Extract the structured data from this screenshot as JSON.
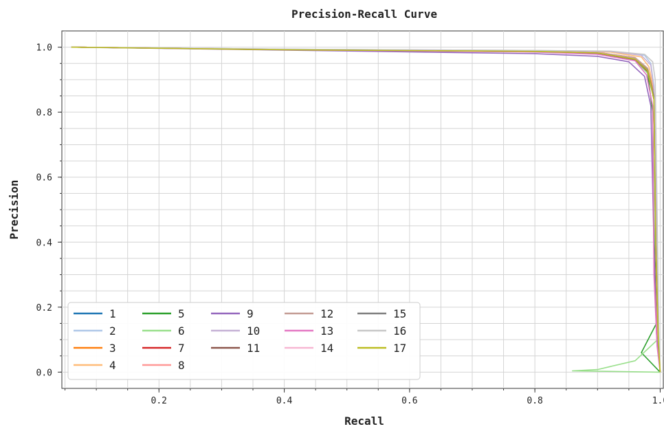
{
  "chart_data": {
    "type": "line",
    "title": "Precision-Recall Curve",
    "xlabel": "Recall",
    "ylabel": "Precision",
    "xlim": [
      0.045,
      1.005
    ],
    "ylim": [
      -0.05,
      1.05
    ],
    "xticks": [
      "0.2",
      "0.4",
      "0.6",
      "0.8",
      "1.0"
    ],
    "xtick_values": [
      0.2,
      0.4,
      0.6,
      0.8,
      1.0
    ],
    "yticks": [
      "0.0",
      "0.2",
      "0.4",
      "0.6",
      "0.8",
      "1.0"
    ],
    "ytick_values": [
      0.0,
      0.2,
      0.4,
      0.6,
      0.8,
      1.0
    ],
    "grid": true,
    "legend": {
      "placement": "lower-left",
      "columns": 5
    },
    "series": [
      {
        "name": "1",
        "color": "#1f77b4",
        "points": [
          [
            0.06,
            1.0
          ],
          [
            0.4,
            0.993
          ],
          [
            0.8,
            0.987
          ],
          [
            0.9,
            0.983
          ],
          [
            0.96,
            0.965
          ],
          [
            0.98,
            0.93
          ],
          [
            0.99,
            0.85
          ],
          [
            0.993,
            0.4
          ],
          [
            0.997,
            0.1
          ],
          [
            1.0,
            0.0
          ]
        ]
      },
      {
        "name": "2",
        "color": "#aec7e8",
        "points": [
          [
            0.06,
            1.0
          ],
          [
            0.4,
            0.994
          ],
          [
            0.8,
            0.989
          ],
          [
            0.92,
            0.987
          ],
          [
            0.975,
            0.975
          ],
          [
            0.985,
            0.95
          ],
          [
            0.99,
            0.88
          ],
          [
            0.994,
            0.5
          ],
          [
            0.997,
            0.12
          ],
          [
            1.0,
            0.0
          ]
        ]
      },
      {
        "name": "3",
        "color": "#ff7f0e",
        "points": [
          [
            0.06,
            1.0
          ],
          [
            0.4,
            0.993
          ],
          [
            0.8,
            0.988
          ],
          [
            0.9,
            0.984
          ],
          [
            0.96,
            0.968
          ],
          [
            0.98,
            0.935
          ],
          [
            0.99,
            0.86
          ],
          [
            0.993,
            0.45
          ],
          [
            0.997,
            0.1
          ],
          [
            1.0,
            0.0
          ]
        ]
      },
      {
        "name": "4",
        "color": "#ffbb78",
        "points": [
          [
            0.06,
            1.0
          ],
          [
            0.4,
            0.993
          ],
          [
            0.8,
            0.988
          ],
          [
            0.92,
            0.985
          ],
          [
            0.97,
            0.97
          ],
          [
            0.982,
            0.94
          ],
          [
            0.99,
            0.87
          ],
          [
            0.993,
            0.45
          ],
          [
            0.998,
            0.1
          ],
          [
            1.0,
            0.0
          ]
        ]
      },
      {
        "name": "5",
        "color": "#2ca02c",
        "points": [
          [
            0.06,
            1.0
          ],
          [
            0.4,
            0.992
          ],
          [
            0.8,
            0.986
          ],
          [
            0.9,
            0.98
          ],
          [
            0.96,
            0.96
          ],
          [
            0.98,
            0.92
          ],
          [
            0.988,
            0.8
          ],
          [
            0.99,
            0.45
          ],
          [
            0.994,
            0.15
          ],
          [
            0.97,
            0.06
          ],
          [
            1.0,
            0.0
          ]
        ]
      },
      {
        "name": "6",
        "color": "#98df8a",
        "points": [
          [
            0.06,
            1.0
          ],
          [
            0.4,
            0.992
          ],
          [
            0.8,
            0.986
          ],
          [
            0.9,
            0.98
          ],
          [
            0.96,
            0.96
          ],
          [
            0.98,
            0.92
          ],
          [
            0.99,
            0.85
          ],
          [
            0.993,
            0.4
          ],
          [
            0.996,
            0.1
          ],
          [
            0.96,
            0.035
          ],
          [
            0.9,
            0.008
          ],
          [
            0.86,
            0.004
          ],
          [
            1.0,
            0.0
          ]
        ]
      },
      {
        "name": "7",
        "color": "#d62728",
        "points": [
          [
            0.06,
            1.0
          ],
          [
            0.4,
            0.993
          ],
          [
            0.8,
            0.987
          ],
          [
            0.9,
            0.982
          ],
          [
            0.96,
            0.962
          ],
          [
            0.98,
            0.925
          ],
          [
            0.99,
            0.84
          ],
          [
            0.993,
            0.4
          ],
          [
            0.996,
            0.1
          ],
          [
            1.0,
            0.0
          ]
        ]
      },
      {
        "name": "8",
        "color": "#ff9896",
        "points": [
          [
            0.06,
            1.0
          ],
          [
            0.4,
            0.993
          ],
          [
            0.8,
            0.987
          ],
          [
            0.9,
            0.982
          ],
          [
            0.96,
            0.963
          ],
          [
            0.98,
            0.928
          ],
          [
            0.99,
            0.84
          ],
          [
            0.993,
            0.35
          ],
          [
            0.996,
            0.09
          ],
          [
            1.0,
            0.0
          ]
        ]
      },
      {
        "name": "9",
        "color": "#9467bd",
        "points": [
          [
            0.06,
            1.0
          ],
          [
            0.4,
            0.991
          ],
          [
            0.8,
            0.98
          ],
          [
            0.9,
            0.972
          ],
          [
            0.95,
            0.955
          ],
          [
            0.975,
            0.91
          ],
          [
            0.985,
            0.82
          ],
          [
            0.99,
            0.4
          ],
          [
            0.994,
            0.12
          ],
          [
            1.0,
            0.0
          ]
        ]
      },
      {
        "name": "10",
        "color": "#c5b0d5",
        "points": [
          [
            0.06,
            1.0
          ],
          [
            0.4,
            0.994
          ],
          [
            0.8,
            0.99
          ],
          [
            0.92,
            0.987
          ],
          [
            0.97,
            0.975
          ],
          [
            0.985,
            0.945
          ],
          [
            0.99,
            0.87
          ],
          [
            0.994,
            0.45
          ],
          [
            0.997,
            0.1
          ],
          [
            1.0,
            0.0
          ]
        ]
      },
      {
        "name": "11",
        "color": "#8c564b",
        "points": [
          [
            0.06,
            1.0
          ],
          [
            0.4,
            0.993
          ],
          [
            0.8,
            0.987
          ],
          [
            0.9,
            0.981
          ],
          [
            0.96,
            0.962
          ],
          [
            0.98,
            0.925
          ],
          [
            0.99,
            0.84
          ],
          [
            0.993,
            0.35
          ],
          [
            0.997,
            0.1
          ],
          [
            1.0,
            0.0
          ]
        ]
      },
      {
        "name": "12",
        "color": "#c49c94",
        "points": [
          [
            0.06,
            1.0
          ],
          [
            0.4,
            0.993
          ],
          [
            0.8,
            0.988
          ],
          [
            0.9,
            0.984
          ],
          [
            0.96,
            0.968
          ],
          [
            0.98,
            0.935
          ],
          [
            0.99,
            0.85
          ],
          [
            0.993,
            0.4
          ],
          [
            0.997,
            0.1
          ],
          [
            1.0,
            0.0
          ]
        ]
      },
      {
        "name": "13",
        "color": "#e377c2",
        "points": [
          [
            0.06,
            1.0
          ],
          [
            0.4,
            0.992
          ],
          [
            0.8,
            0.985
          ],
          [
            0.9,
            0.978
          ],
          [
            0.96,
            0.958
          ],
          [
            0.978,
            0.915
          ],
          [
            0.988,
            0.82
          ],
          [
            0.99,
            0.3
          ],
          [
            0.995,
            0.08
          ],
          [
            1.0,
            0.0
          ]
        ]
      },
      {
        "name": "14",
        "color": "#f7b6d2",
        "points": [
          [
            0.06,
            1.0
          ],
          [
            0.4,
            0.993
          ],
          [
            0.8,
            0.987
          ],
          [
            0.9,
            0.983
          ],
          [
            0.96,
            0.965
          ],
          [
            0.98,
            0.93
          ],
          [
            0.99,
            0.85
          ],
          [
            0.993,
            0.38
          ],
          [
            0.997,
            0.1
          ],
          [
            1.0,
            0.0
          ]
        ]
      },
      {
        "name": "15",
        "color": "#7f7f7f",
        "points": [
          [
            0.06,
            1.0
          ],
          [
            0.4,
            0.993
          ],
          [
            0.8,
            0.987
          ],
          [
            0.9,
            0.982
          ],
          [
            0.96,
            0.964
          ],
          [
            0.98,
            0.93
          ],
          [
            0.99,
            0.85
          ],
          [
            0.993,
            0.4
          ],
          [
            0.997,
            0.1
          ],
          [
            1.0,
            0.0
          ]
        ]
      },
      {
        "name": "16",
        "color": "#c7c7c7",
        "points": [
          [
            0.06,
            1.0
          ],
          [
            0.4,
            0.994
          ],
          [
            0.8,
            0.99
          ],
          [
            0.92,
            0.988
          ],
          [
            0.975,
            0.978
          ],
          [
            0.988,
            0.955
          ],
          [
            0.992,
            0.9
          ],
          [
            0.995,
            0.5
          ],
          [
            0.998,
            0.12
          ],
          [
            1.0,
            0.0
          ]
        ]
      },
      {
        "name": "17",
        "color": "#bcbd22",
        "points": [
          [
            0.06,
            1.0
          ],
          [
            0.4,
            0.992
          ],
          [
            0.8,
            0.987
          ],
          [
            0.9,
            0.982
          ],
          [
            0.96,
            0.963
          ],
          [
            0.98,
            0.928
          ],
          [
            0.99,
            0.84
          ],
          [
            0.993,
            0.4
          ],
          [
            0.997,
            0.1
          ],
          [
            1.0,
            0.0
          ]
        ]
      }
    ]
  }
}
